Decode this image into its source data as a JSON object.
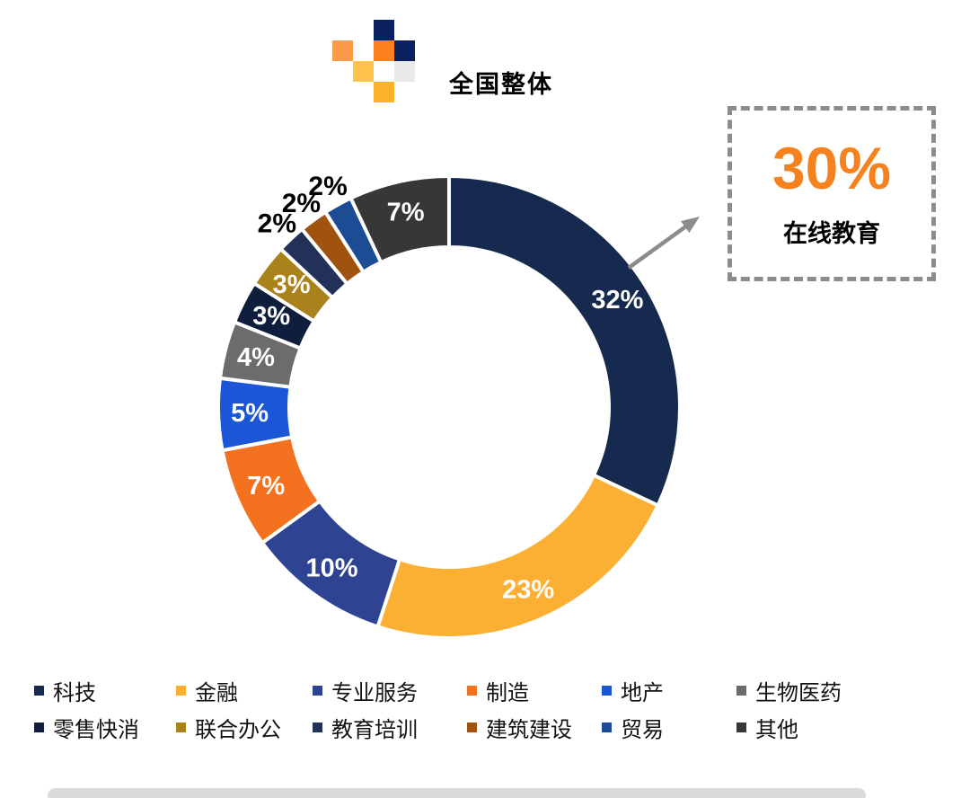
{
  "header": {
    "title": "全国整体",
    "logo_cells": [
      {
        "col": 3,
        "row": 1,
        "color": "#0B2161",
        "name": "navy-square"
      },
      {
        "col": 1,
        "row": 2,
        "color": "#FB9A48",
        "name": "light-orange-square"
      },
      {
        "col": 3,
        "row": 2,
        "color": "#FB821E",
        "name": "orange-square"
      },
      {
        "col": 4,
        "row": 2,
        "color": "#0B2161",
        "name": "navy-square"
      },
      {
        "col": 2,
        "row": 3,
        "color": "#FFC34A",
        "name": "yellow-square"
      },
      {
        "col": 3,
        "row": 3,
        "color": "#FFFFFF",
        "name": "white-square"
      },
      {
        "col": 4,
        "row": 3,
        "color": "#E9E9E9",
        "name": "gray-square"
      },
      {
        "col": 3,
        "row": 4,
        "color": "#FBB22B",
        "name": "amber-square"
      }
    ]
  },
  "chart_data": {
    "type": "pie",
    "donut": true,
    "title": "全国整体",
    "value_suffix": "%",
    "start_angle_deg_from_top": 0,
    "direction": "clockwise",
    "legend_position": "bottom",
    "series": [
      {
        "label": "科技",
        "value": 32,
        "color": "#16294F",
        "label_pos": "inside"
      },
      {
        "label": "金融",
        "value": 23,
        "color": "#FBB034",
        "label_pos": "inside"
      },
      {
        "label": "专业服务",
        "value": 10,
        "color": "#2E4492",
        "label_pos": "inside"
      },
      {
        "label": "制造",
        "value": 7,
        "color": "#F4711F",
        "label_pos": "inside"
      },
      {
        "label": "地产",
        "value": 5,
        "color": "#1A56D6",
        "label_pos": "inside"
      },
      {
        "label": "生物医药",
        "value": 4,
        "color": "#6C6C6C",
        "label_pos": "inside"
      },
      {
        "label": "零售快消",
        "value": 3,
        "color": "#0F1E3C",
        "label_pos": "inside"
      },
      {
        "label": "联合办公",
        "value": 3,
        "color": "#A9821C",
        "label_pos": "inside"
      },
      {
        "label": "教育培训",
        "value": 2,
        "color": "#233158",
        "label_pos": "outside"
      },
      {
        "label": "建筑建设",
        "value": 2,
        "color": "#A0520F",
        "label_pos": "outside"
      },
      {
        "label": "贸易",
        "value": 2,
        "color": "#1C4C94",
        "label_pos": "outside"
      },
      {
        "label": "其他",
        "value": 7,
        "color": "#373737",
        "label_pos": "inside"
      }
    ],
    "annotation": {
      "value": "30%",
      "label": "在线教育",
      "value_color": "#F6821F",
      "box_border_color": "#8C8C8C",
      "arrow_color": "#8C8C8C",
      "points_to_segment": "科技"
    }
  },
  "legend": {
    "rows": 2,
    "columns": 6
  },
  "footer": {
    "divider_color": "#DBDBDB"
  }
}
